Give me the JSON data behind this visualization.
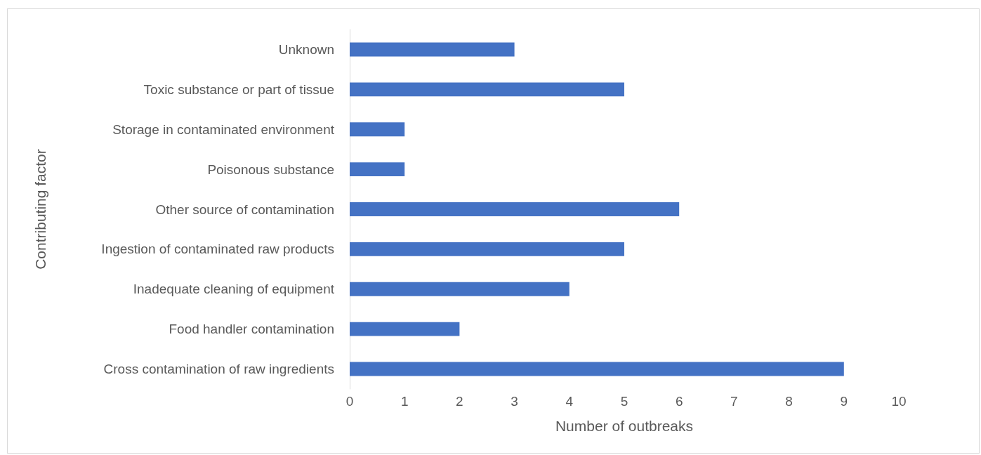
{
  "chart_data": {
    "type": "bar",
    "orientation": "horizontal",
    "xlabel": "Number of outbreaks",
    "ylabel": "Contributing factor",
    "categories": [
      "Unknown",
      "Toxic substance or part of tissue",
      "Storage in contaminated environment",
      "Poisonous substance",
      "Other source of contamination",
      "Ingestion of contaminated raw products",
      "Inadequate cleaning of equipment",
      "Food handler contamination",
      "Cross contamination of raw ingredients"
    ],
    "values": [
      3,
      5,
      1,
      1,
      6,
      5,
      4,
      2,
      9
    ],
    "color": "#4472c4",
    "xlim": [
      0,
      10
    ],
    "xticks": [
      0,
      1,
      2,
      3,
      4,
      5,
      6,
      7,
      8,
      9,
      10
    ]
  }
}
